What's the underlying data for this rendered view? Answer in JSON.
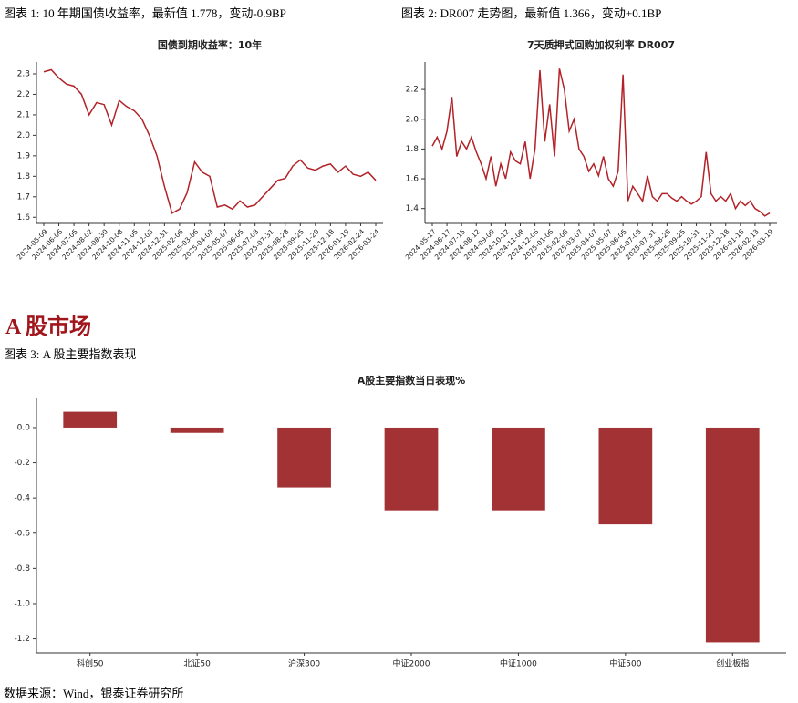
{
  "captions": [
    "图表 1: 10 年期国债收益率，最新值 1.778，变动-0.9BP",
    "图表 2: DR007 走势图，最新值 1.366，变动+0.1BP",
    "图表 3: A 股主要指数表现"
  ],
  "section_heading": "A 股市场",
  "source": "数据来源：Wind，银泰证券研究所",
  "chart_data": [
    {
      "type": "line",
      "title": "国债到期收益率：10年",
      "color": "#b22228",
      "categories": [
        "2024-05-09",
        null,
        "2024-06-06",
        null,
        "2024-07-05",
        null,
        "2024-08-02",
        null,
        "2024-08-30",
        null,
        "2024-10-08",
        null,
        "2024-11-05",
        null,
        "2024-12-03",
        null,
        "2024-12-31",
        null,
        "2025-02-06",
        null,
        "2025-03-06",
        null,
        "2025-04-03",
        null,
        "2025-05-07",
        null,
        "2025-06-05",
        null,
        "2025-07-03",
        null,
        "2025-07-31",
        null,
        "2025-08-28",
        null,
        "2025-09-25",
        null,
        "2025-11-20",
        null,
        "2025-12-18",
        null,
        "2026-01-19",
        null,
        "2026-02-24",
        null,
        "2026-03-24"
      ],
      "values": [
        2.31,
        2.32,
        2.28,
        2.25,
        2.24,
        2.2,
        2.1,
        2.16,
        2.15,
        2.05,
        2.17,
        2.14,
        2.12,
        2.08,
        2.0,
        1.9,
        1.75,
        1.62,
        1.64,
        1.72,
        1.87,
        1.82,
        1.8,
        1.65,
        1.66,
        1.64,
        1.68,
        1.65,
        1.66,
        1.7,
        1.74,
        1.78,
        1.79,
        1.85,
        1.88,
        1.84,
        1.83,
        1.85,
        1.86,
        1.82,
        1.85,
        1.81,
        1.8,
        1.82,
        1.78
      ],
      "ylim": [
        1.57,
        2.34
      ],
      "yticks": [
        1.6,
        1.7,
        1.8,
        1.9,
        {
          "value": 2.0,
          "label": "2.0"
        },
        2.1,
        2.2,
        2.3
      ]
    },
    {
      "type": "line",
      "title": "7天质押式回购加权利率 DR007",
      "color": "#b22228",
      "categories": [
        "2024-05-17",
        null,
        null,
        "2024-06-17",
        null,
        null,
        "2024-07-15",
        null,
        null,
        "2024-08-12",
        null,
        null,
        "2024-09-09",
        null,
        null,
        "2024-10-12",
        null,
        null,
        "2024-11-08",
        null,
        null,
        "2024-12-06",
        null,
        null,
        "2025-01-06",
        null,
        null,
        "2025-02-08",
        null,
        null,
        "2025-03-07",
        null,
        null,
        "2025-04-07",
        null,
        null,
        "2025-05-07",
        null,
        null,
        "2025-06-05",
        null,
        null,
        "2025-07-03",
        null,
        null,
        "2025-07-31",
        null,
        null,
        "2025-08-28",
        null,
        null,
        "2025-09-25",
        null,
        null,
        "2025-10-31",
        null,
        null,
        "2025-11-20",
        null,
        null,
        "2025-12-18",
        null,
        null,
        "2026-01-16",
        null,
        null,
        "2026-02-13",
        null,
        null,
        "2026-03-19"
      ],
      "values": [
        1.82,
        1.88,
        1.8,
        1.92,
        2.15,
        1.75,
        1.85,
        1.8,
        1.88,
        1.78,
        1.7,
        1.6,
        1.75,
        1.55,
        1.7,
        1.6,
        1.78,
        1.72,
        1.7,
        1.85,
        1.6,
        1.8,
        2.33,
        1.85,
        2.1,
        1.75,
        2.34,
        2.2,
        1.92,
        2.0,
        1.8,
        1.75,
        1.65,
        1.7,
        1.62,
        1.75,
        1.6,
        1.55,
        1.65,
        2.3,
        1.45,
        1.55,
        1.5,
        1.45,
        1.62,
        1.48,
        1.45,
        1.5,
        1.5,
        1.47,
        1.45,
        1.48,
        1.45,
        1.43,
        1.45,
        1.48,
        1.78,
        1.5,
        1.45,
        1.48,
        1.45,
        1.5,
        1.4,
        1.45,
        1.42,
        1.45,
        1.4,
        1.38,
        1.35,
        1.37
      ],
      "ylim": [
        1.3,
        2.36
      ],
      "yticks": [
        1.4,
        1.6,
        1.8,
        {
          "value": 2.0,
          "label": "2.0"
        },
        2.2
      ]
    },
    {
      "type": "bar",
      "title": "A股主要指数当日表现%",
      "color": "#a33234",
      "categories": [
        "科创50",
        "北证50",
        "沪深300",
        "中证2000",
        "中证1000",
        "中证500",
        "创业板指"
      ],
      "values": [
        0.09,
        -0.03,
        -0.34,
        -0.47,
        -0.47,
        -0.55,
        -1.22
      ],
      "ylim": [
        -1.28,
        0.15
      ],
      "yticks": [
        {
          "value": 0,
          "label": "0.0"
        },
        -0.2,
        -0.4,
        -0.6,
        -0.8,
        {
          "value": -1.0,
          "label": "-1.0"
        },
        -1.2
      ]
    }
  ]
}
